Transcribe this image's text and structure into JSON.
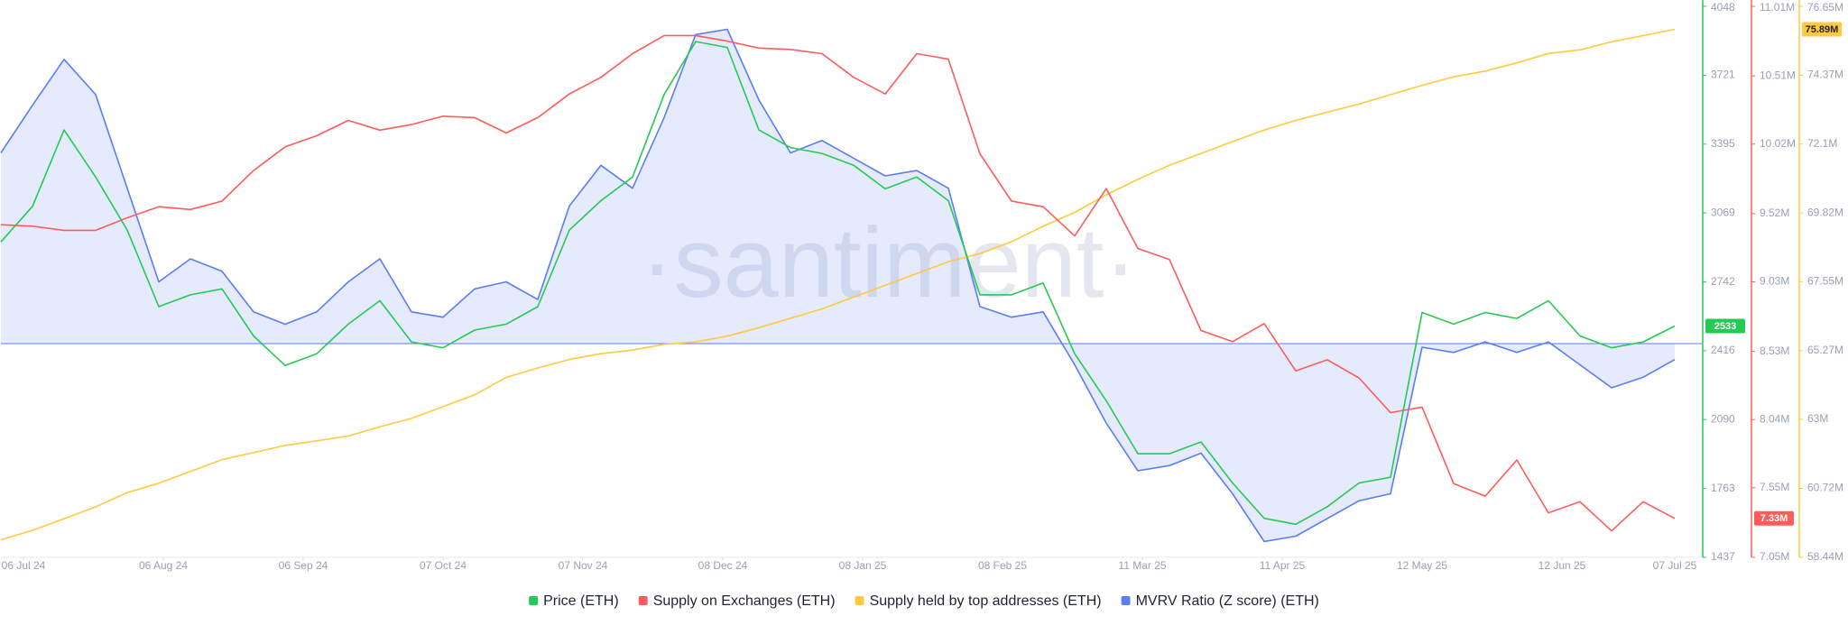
{
  "chart_data": {
    "type": "line",
    "watermark": "·santiment·",
    "xlim": [
      0,
      377
    ],
    "xticks": [
      {
        "value": 5,
        "label": "06 Jul 24"
      },
      {
        "value": 36,
        "label": "06 Aug 24"
      },
      {
        "value": 67,
        "label": "06 Sep 24"
      },
      {
        "value": 98,
        "label": "07 Oct 24"
      },
      {
        "value": 129,
        "label": "07 Nov 24"
      },
      {
        "value": 160,
        "label": "08 Dec 24"
      },
      {
        "value": 191,
        "label": "08 Jan 25"
      },
      {
        "value": 222,
        "label": "08 Feb 25"
      },
      {
        "value": 253,
        "label": "11 Mar 25"
      },
      {
        "value": 284,
        "label": "11 Apr 25"
      },
      {
        "value": 315,
        "label": "12 May 25"
      },
      {
        "value": 346,
        "label": "12 Jun 25"
      },
      {
        "value": 371,
        "label": "07 Jul 25"
      }
    ],
    "x": [
      0,
      7,
      14,
      21,
      28,
      35,
      42,
      49,
      56,
      63,
      70,
      77,
      84,
      91,
      98,
      105,
      112,
      119,
      126,
      133,
      140,
      147,
      154,
      161,
      168,
      175,
      182,
      189,
      196,
      203,
      210,
      217,
      224,
      231,
      238,
      245,
      252,
      259,
      266,
      273,
      280,
      287,
      294,
      301,
      308,
      315,
      322,
      329,
      336,
      343,
      350,
      357,
      364,
      371
    ],
    "ylim": [
      1437,
      4048
    ],
    "yticks": [
      4048,
      3721,
      3395,
      3069,
      2742,
      2416,
      2090,
      1763,
      1437
    ],
    "y2lim": [
      7050000,
      11010000
    ],
    "y2ticks": [
      {
        "value": 11010000,
        "label": "11.01M"
      },
      {
        "value": 10510000,
        "label": "10.51M"
      },
      {
        "value": 10020000,
        "label": "10.02M"
      },
      {
        "value": 9520000,
        "label": "9.52M"
      },
      {
        "value": 9030000,
        "label": "9.03M"
      },
      {
        "value": 8530000,
        "label": "8.53M"
      },
      {
        "value": 8040000,
        "label": "8.04M"
      },
      {
        "value": 7550000,
        "label": "7.55M"
      },
      {
        "value": 7050000,
        "label": "7.05M"
      }
    ],
    "y3lim": [
      58440000,
      76650000
    ],
    "y3ticks": [
      {
        "value": 76650000,
        "label": "76.65M"
      },
      {
        "value": 74370000,
        "label": "74.37M"
      },
      {
        "value": 72100000,
        "label": "72.1M"
      },
      {
        "value": 69820000,
        "label": "69.82M"
      },
      {
        "value": 67550000,
        "label": "67.55M"
      },
      {
        "value": 65270000,
        "label": "65.27M"
      },
      {
        "value": 63000000,
        "label": "63M"
      },
      {
        "value": 60720000,
        "label": "60.72M"
      },
      {
        "value": 58440000,
        "label": "58.44M"
      }
    ],
    "y4lim": [
      -1.21,
      1.91
    ],
    "grid": false,
    "legend": "bottom",
    "series": [
      {
        "name": "Price (ETH)",
        "color": "#26c953",
        "axis": "y",
        "values": [
          2932,
          3100,
          3462,
          3239,
          2988,
          2625,
          2681,
          2709,
          2486,
          2346,
          2402,
          2542,
          2653,
          2458,
          2430,
          2514,
          2542,
          2625,
          2988,
          3127,
          3239,
          3630,
          3881,
          3853,
          3462,
          3379,
          3351,
          3295,
          3183,
          3239,
          3127,
          2681,
          2681,
          2737,
          2402,
          2179,
          1928,
          1928,
          1984,
          1789,
          1622,
          1594,
          1677,
          1789,
          1817,
          2597,
          2542,
          2597,
          2569,
          2653,
          2486,
          2430,
          2458,
          2533
        ]
      },
      {
        "name": "Supply on Exchanges (ETH)",
        "color": "#ff5b5b",
        "axis": "y2",
        "values": [
          9440000,
          9430000,
          9400000,
          9400000,
          9490000,
          9570000,
          9550000,
          9610000,
          9830000,
          10000000,
          10080000,
          10190000,
          10120000,
          10160000,
          10220000,
          10210000,
          10100000,
          10210000,
          10380000,
          10500000,
          10670000,
          10800000,
          10800000,
          10760000,
          10710000,
          10700000,
          10670000,
          10500000,
          10380000,
          10670000,
          10630000,
          9950000,
          9610000,
          9570000,
          9360000,
          9700000,
          9270000,
          9190000,
          8680000,
          8600000,
          8730000,
          8390000,
          8470000,
          8340000,
          8090000,
          8130000,
          7580000,
          7490000,
          7750000,
          7370000,
          7450000,
          7240000,
          7450000,
          7330000
        ],
        "value_labels": [
          null,
          null,
          null,
          null,
          null,
          null,
          null,
          null,
          null,
          null,
          null,
          null,
          null,
          null,
          null,
          null,
          null,
          null,
          null,
          null,
          null,
          null,
          null,
          null,
          null,
          null,
          null,
          null,
          null,
          null,
          null,
          null,
          null,
          null,
          null,
          null,
          null,
          null,
          null,
          null,
          null,
          null,
          null,
          null,
          null,
          null,
          null,
          null,
          null,
          null,
          null,
          null,
          null,
          "7.33M"
        ]
      },
      {
        "name": "Supply held by top addresses (ETH)",
        "color": "#ffc940",
        "axis": "y3",
        "values": [
          59020000,
          59330000,
          59720000,
          60110000,
          60580000,
          60890000,
          61280000,
          61670000,
          61900000,
          62140000,
          62290000,
          62450000,
          62760000,
          63030000,
          63420000,
          63810000,
          64390000,
          64700000,
          64980000,
          65170000,
          65290000,
          65480000,
          65560000,
          65750000,
          66030000,
          66340000,
          66650000,
          67040000,
          67430000,
          67820000,
          68210000,
          68480000,
          68870000,
          69380000,
          69840000,
          70420000,
          70930000,
          71400000,
          71790000,
          72180000,
          72560000,
          72880000,
          73150000,
          73420000,
          73730000,
          74040000,
          74320000,
          74510000,
          74780000,
          75090000,
          75210000,
          75480000,
          75680000,
          75890000
        ],
        "value_labels": [
          null,
          null,
          null,
          null,
          null,
          null,
          null,
          null,
          null,
          null,
          null,
          null,
          null,
          null,
          null,
          null,
          null,
          null,
          null,
          null,
          null,
          null,
          null,
          null,
          null,
          null,
          null,
          null,
          null,
          null,
          null,
          null,
          null,
          null,
          null,
          null,
          null,
          null,
          null,
          null,
          null,
          null,
          null,
          null,
          null,
          null,
          null,
          null,
          null,
          null,
          null,
          null,
          null,
          "75.89M"
        ]
      },
      {
        "name": "MVRV Ratio (Z score) (ETH)",
        "color": "#5b7cf5",
        "axis": "y4",
        "area": true,
        "values": [
          1.08,
          1.35,
          1.61,
          1.41,
          0.88,
          0.35,
          0.48,
          0.41,
          0.18,
          0.11,
          0.18,
          0.35,
          0.48,
          0.18,
          0.15,
          0.31,
          0.35,
          0.25,
          0.78,
          1.01,
          0.88,
          1.28,
          1.75,
          1.78,
          1.38,
          1.08,
          1.15,
          1.05,
          0.95,
          0.98,
          0.88,
          0.21,
          0.15,
          0.18,
          -0.12,
          -0.45,
          -0.72,
          -0.69,
          -0.62,
          -0.85,
          -1.12,
          -1.09,
          -0.99,
          -0.89,
          -0.85,
          -0.02,
          -0.05,
          0.01,
          -0.05,
          0.01,
          -0.12,
          -0.25,
          -0.19,
          -0.09
        ]
      }
    ]
  }
}
